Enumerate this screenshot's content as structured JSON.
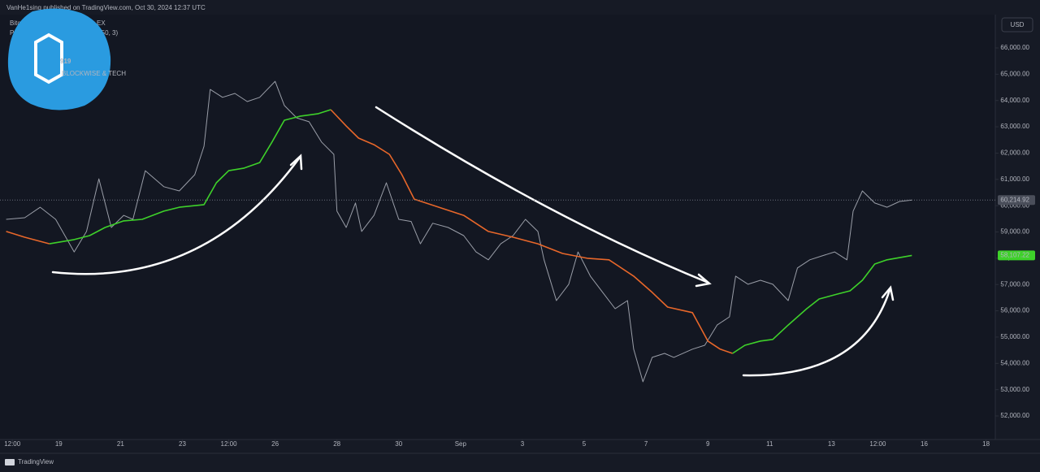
{
  "header": "VanHe1sing published on TradingView.com, Oct 30, 2024 12:37 UTC",
  "logo": {
    "number": "919",
    "tagline": "BLOCKWISE & TECH"
  },
  "legend_fragments": [
    "Bitc",
    "EX",
    "Pri",
    "(50, 3)"
  ],
  "currency": "USD",
  "footer": "TradingView",
  "chart_data": {
    "type": "line",
    "xlim": [
      17.1,
      49.3
    ],
    "ylim": [
      51135,
      67267
    ],
    "xticks": [
      {
        "value": 17.5,
        "label": "12:00"
      },
      19,
      21,
      23,
      {
        "value": 24.5,
        "label": "12:00"
      },
      26,
      28,
      30,
      {
        "value": 32,
        "label": "Sep"
      },
      {
        "value": 34,
        "label": "3"
      },
      {
        "value": 36,
        "label": "5"
      },
      {
        "value": 38,
        "label": "7"
      },
      {
        "value": 40,
        "label": "9"
      },
      {
        "value": 42,
        "label": "11"
      },
      {
        "value": 44,
        "label": "13"
      },
      {
        "value": 45.5,
        "label": "12:00"
      },
      {
        "value": 47,
        "label": "16"
      },
      {
        "value": 49,
        "label": "18"
      }
    ],
    "yticks": [
      {
        "value": 52000,
        "label": "52,000.00"
      },
      {
        "value": 53000,
        "label": "53,000.00"
      },
      {
        "value": 54000,
        "label": "54,000.00"
      },
      {
        "value": 55000,
        "label": "55,000.00"
      },
      {
        "value": 56000,
        "label": "56,000.00"
      },
      {
        "value": 57000,
        "label": "57,000.00"
      },
      {
        "value": 58000,
        "label": "58,000.00"
      },
      {
        "value": 59000,
        "label": "59,000.00"
      },
      {
        "value": 60000,
        "label": "60,000.00"
      },
      {
        "value": 61000,
        "label": "61,000.00"
      },
      {
        "value": 62000,
        "label": "62,000.00"
      },
      {
        "value": 63000,
        "label": "63,000.00"
      },
      {
        "value": 64000,
        "label": "64,000.00"
      },
      {
        "value": 65000,
        "label": "65,000.00"
      },
      {
        "value": 66000,
        "label": "66,000.00"
      }
    ],
    "grid": false,
    "series": [
      {
        "color": "#9a9ea8",
        "width": 1,
        "x": [
          17.3,
          17.9,
          18.4,
          18.9,
          19.5,
          19.9,
          20.3,
          20.7,
          21.1,
          21.4,
          21.8,
          22.4,
          22.9,
          23.4,
          23.7,
          23.9,
          24.3,
          24.7,
          25.1,
          25.5,
          26.0,
          26.3,
          26.7,
          27.1,
          27.5,
          27.9,
          28.0,
          28.3,
          28.6,
          28.8,
          29.2,
          29.6,
          30.0,
          30.4,
          30.7,
          31.1,
          31.6,
          32.1,
          32.5,
          32.9,
          33.3,
          33.7,
          34.1,
          34.5,
          34.7,
          35.1,
          35.5,
          35.8,
          36.2,
          36.6,
          37.0,
          37.4,
          37.6,
          37.9,
          38.2,
          38.6,
          38.9,
          39.5,
          39.9,
          40.3,
          40.7,
          40.9,
          41.3,
          41.7,
          42.1,
          42.6,
          42.9,
          43.3,
          43.7,
          44.1,
          44.5,
          44.7,
          45.0,
          45.4,
          45.8,
          46.2,
          46.6
        ],
        "values": [
          59480,
          59540,
          59940,
          59480,
          58240,
          59020,
          61020,
          59170,
          59630,
          59480,
          61330,
          60720,
          60560,
          61180,
          62260,
          64420,
          64120,
          64270,
          63960,
          64120,
          64730,
          63810,
          63340,
          63190,
          62420,
          61950,
          59790,
          59170,
          60100,
          59020,
          59630,
          60870,
          59480,
          59400,
          58550,
          59330,
          59170,
          58860,
          58240,
          57940,
          58550,
          58860,
          59480,
          59020,
          57940,
          56390,
          57010,
          58240,
          57320,
          56700,
          56080,
          56390,
          54540,
          53300,
          54230,
          54380,
          54230,
          54540,
          54690,
          55460,
          55770,
          57320,
          57010,
          57160,
          57010,
          56390,
          57630,
          57940,
          58090,
          58240,
          57940,
          59790,
          60560,
          60100,
          59940,
          60160,
          60214.92
        ]
      },
      {
        "color": "#e8672a",
        "width": 1.6,
        "x": [
          17.3,
          17.9,
          18.7
        ],
        "values": [
          59020,
          58800,
          58550
        ]
      },
      {
        "color": "#3ed12a",
        "width": 1.6,
        "x": [
          18.7,
          19.5,
          20.0,
          20.5,
          21.1,
          21.7,
          22.4,
          22.9,
          23.7,
          24.1,
          24.5,
          25.0,
          25.5,
          25.9,
          26.3,
          26.8,
          27.4,
          27.8
        ],
        "values": [
          58550,
          58710,
          58860,
          59170,
          59420,
          59480,
          59790,
          59940,
          60040,
          60870,
          61330,
          61430,
          61640,
          62420,
          63250,
          63400,
          63500,
          63650
        ]
      },
      {
        "color": "#e8672a",
        "width": 1.6,
        "x": [
          27.8,
          28.3,
          28.7,
          29.2,
          29.7,
          30.1,
          30.5,
          31.3,
          32.1,
          32.9,
          33.7,
          34.5,
          35.3,
          36.1,
          36.8,
          37.6,
          38.2,
          38.7,
          39.5,
          40.0,
          40.4,
          40.8
        ],
        "values": [
          63650,
          63030,
          62570,
          62320,
          61950,
          61180,
          60250,
          59940,
          59630,
          59020,
          58800,
          58550,
          58180,
          58000,
          57940,
          57320,
          56700,
          56140,
          55930,
          54850,
          54540,
          54380
        ]
      },
      {
        "color": "#3ed12a",
        "width": 1.6,
        "x": [
          40.8,
          41.2,
          41.7,
          42.1,
          42.6,
          43.2,
          43.6,
          44.2,
          44.6,
          45.0,
          45.4,
          45.8,
          46.6
        ],
        "values": [
          54380,
          54690,
          54850,
          54910,
          55460,
          56080,
          56450,
          56640,
          56760,
          57160,
          57780,
          57940,
          58107.22
        ]
      }
    ],
    "price_tags": [
      {
        "value": 60214.92,
        "label": "60,214.92",
        "color": "#4a4e5a",
        "line": true
      },
      {
        "value": 58107.22,
        "label": "58,107.22",
        "color": "#3ed12a",
        "line": false
      }
    ]
  }
}
